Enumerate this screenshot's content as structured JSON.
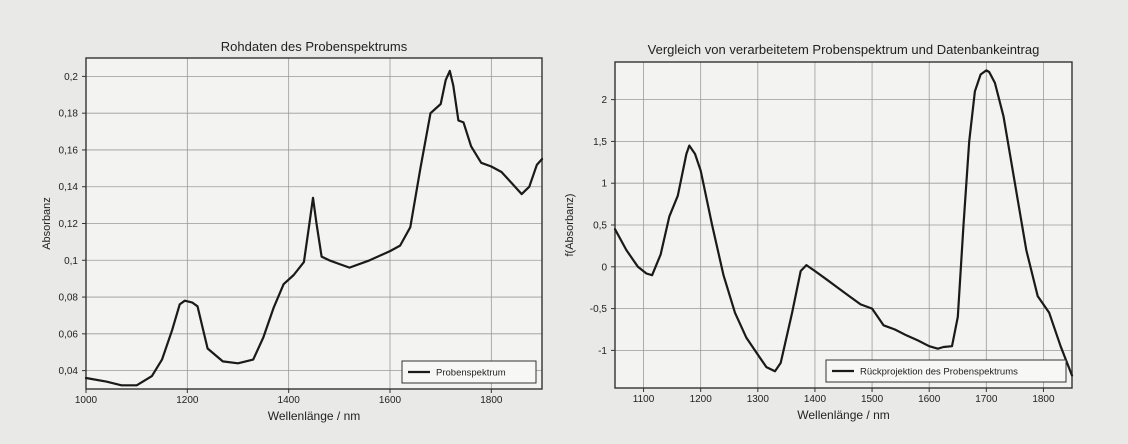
{
  "chart_data": [
    {
      "type": "line",
      "title": "Rohdaten des Probenspektrums",
      "xlabel": "Wellenlänge / nm",
      "ylabel": "Absorbanz",
      "xlim": [
        1000,
        1900
      ],
      "ylim": [
        0.03,
        0.21
      ],
      "xticks": [
        1000,
        1200,
        1400,
        1600,
        1800
      ],
      "xtick_labels": [
        "1000",
        "1200",
        "1400",
        "1600",
        "1800"
      ],
      "yticks": [
        0.04,
        0.06,
        0.08,
        0.1,
        0.12,
        0.14,
        0.16,
        0.18,
        0.2
      ],
      "ytick_labels": [
        "0,04",
        "0,06",
        "0,08",
        "0,1",
        "0,12",
        "0,14",
        "0,16",
        "0,18",
        "0,2"
      ],
      "grid": true,
      "legend_position": "bottom-right",
      "series": [
        {
          "name": "Probenspektrum",
          "color": "#1a1a1a",
          "x": [
            1000,
            1040,
            1070,
            1100,
            1130,
            1150,
            1170,
            1185,
            1195,
            1210,
            1220,
            1240,
            1270,
            1300,
            1330,
            1350,
            1370,
            1390,
            1410,
            1430,
            1440,
            1448,
            1455,
            1465,
            1480,
            1500,
            1520,
            1560,
            1600,
            1620,
            1640,
            1660,
            1680,
            1700,
            1710,
            1718,
            1725,
            1735,
            1745,
            1760,
            1780,
            1800,
            1820,
            1840,
            1860,
            1875,
            1890,
            1900
          ],
          "y": [
            0.036,
            0.034,
            0.032,
            0.032,
            0.037,
            0.046,
            0.062,
            0.076,
            0.078,
            0.077,
            0.075,
            0.052,
            0.045,
            0.044,
            0.046,
            0.058,
            0.074,
            0.087,
            0.092,
            0.099,
            0.118,
            0.134,
            0.12,
            0.102,
            0.1,
            0.098,
            0.096,
            0.1,
            0.105,
            0.108,
            0.118,
            0.15,
            0.18,
            0.185,
            0.198,
            0.203,
            0.195,
            0.176,
            0.175,
            0.162,
            0.153,
            0.151,
            0.148,
            0.142,
            0.136,
            0.14,
            0.152,
            0.155
          ]
        }
      ]
    },
    {
      "type": "line",
      "title": "Vergleich von verarbeitetem Probenspektrum und Datenbankeintrag",
      "xlabel": "Wellenlänge / nm",
      "ylabel": "f(Absorbanz)",
      "xlim": [
        1050,
        1850
      ],
      "ylim": [
        -1.45,
        2.45
      ],
      "xticks": [
        1100,
        1200,
        1300,
        1400,
        1500,
        1600,
        1700,
        1800
      ],
      "xtick_labels": [
        "1100",
        "1200",
        "1300",
        "1400",
        "1500",
        "1600",
        "1700",
        "1800"
      ],
      "yticks": [
        -1,
        -0.5,
        0,
        0.5,
        1,
        1.5,
        2
      ],
      "ytick_labels": [
        "-1",
        "-0,5",
        "0",
        "0,5",
        "1",
        "1,5",
        "2"
      ],
      "grid": true,
      "legend_position": "bottom-right",
      "series": [
        {
          "name": "Rückprojektion des Probenspektrums",
          "color": "#1a1a1a",
          "x": [
            1050,
            1070,
            1090,
            1105,
            1115,
            1130,
            1145,
            1160,
            1175,
            1180,
            1190,
            1200,
            1220,
            1240,
            1260,
            1280,
            1300,
            1315,
            1330,
            1340,
            1360,
            1375,
            1385,
            1400,
            1420,
            1440,
            1460,
            1480,
            1500,
            1510,
            1520,
            1540,
            1560,
            1580,
            1600,
            1615,
            1625,
            1640,
            1650,
            1660,
            1670,
            1680,
            1690,
            1700,
            1705,
            1715,
            1730,
            1750,
            1770,
            1790,
            1810,
            1830,
            1850
          ],
          "y": [
            0.45,
            0.2,
            0.0,
            -0.08,
            -0.1,
            0.15,
            0.6,
            0.85,
            1.35,
            1.45,
            1.35,
            1.15,
            0.5,
            -0.1,
            -0.55,
            -0.85,
            -1.05,
            -1.2,
            -1.25,
            -1.15,
            -0.55,
            -0.05,
            0.02,
            -0.05,
            -0.15,
            -0.25,
            -0.35,
            -0.45,
            -0.5,
            -0.6,
            -0.7,
            -0.75,
            -0.82,
            -0.88,
            -0.95,
            -0.98,
            -0.96,
            -0.95,
            -0.6,
            0.5,
            1.5,
            2.1,
            2.3,
            2.35,
            2.33,
            2.2,
            1.8,
            1.0,
            0.2,
            -0.35,
            -0.55,
            -0.95,
            -1.3
          ]
        }
      ]
    }
  ]
}
